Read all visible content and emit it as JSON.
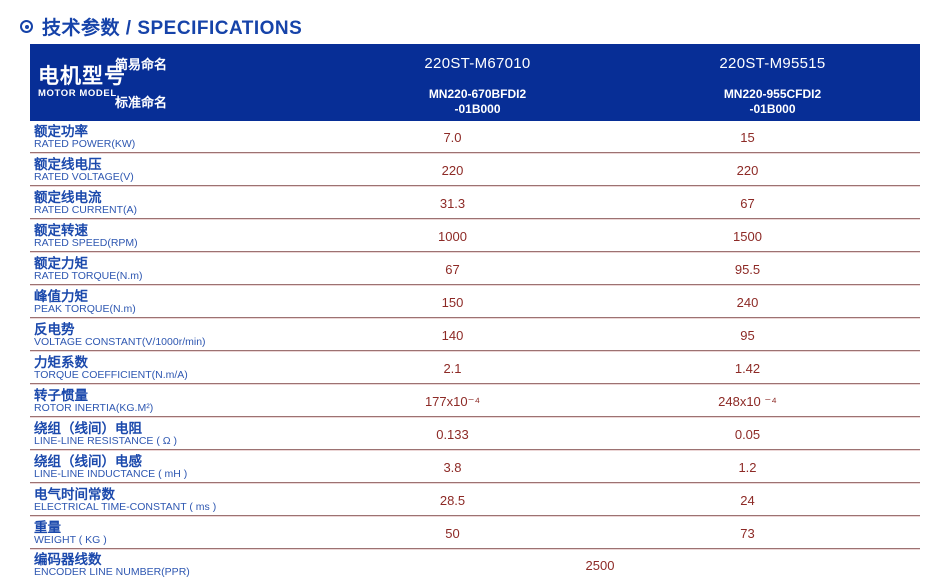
{
  "page": {
    "title": "技术参数 / SPECIFICATIONS"
  },
  "colors": {
    "header_blue": "#072e96",
    "label_blue": "#1b49ac",
    "value_maroon": "#8d2a26",
    "separator_maroon": "#9c7272"
  },
  "table": {
    "header": {
      "model_label_cn": "电机型号",
      "model_label_en": "MOTOR MODEL",
      "simple_name_label": "简易命名",
      "standard_name_label": "标准命名",
      "columns": [
        {
          "simple": "220ST-M67010",
          "standard_line1": "MN220-670BFDI2",
          "standard_line2": "-01B000"
        },
        {
          "simple": "220ST-M95515",
          "standard_line1": "MN220-955CFDI2",
          "standard_line2": "-01B000"
        }
      ]
    },
    "rows": [
      {
        "cn": "额定功率",
        "en": "RATED POWER(KW)",
        "v1": "7.0",
        "v2": "15"
      },
      {
        "cn": "额定线电压",
        "en": "RATED VOLTAGE(V)",
        "v1": "220",
        "v2": "220"
      },
      {
        "cn": "额定线电流",
        "en": "RATED CURRENT(A)",
        "v1": "31.3",
        "v2": "67"
      },
      {
        "cn": "额定转速",
        "en": "RATED SPEED(RPM)",
        "v1": "1000",
        "v2": "1500"
      },
      {
        "cn": "额定力矩",
        "en": "RATED TORQUE(N.m)",
        "v1": "67",
        "v2": "95.5"
      },
      {
        "cn": "峰值力矩",
        "en": "PEAK TORQUE(N.m)",
        "v1": "150",
        "v2": "240"
      },
      {
        "cn": "反电势",
        "en": "VOLTAGE CONSTANT(V/1000r/min)",
        "v1": "140",
        "v2": "95"
      },
      {
        "cn": "力矩系数",
        "en": "TORQUE COEFFICIENT(N.m/A)",
        "v1": "2.1",
        "v2": "1.42"
      },
      {
        "cn": "转子惯量",
        "en": "ROTOR INERTIA(KG.M²)",
        "v1": "177x10⁻⁴",
        "v2": "248x10 ⁻⁴"
      },
      {
        "cn": "绕组（线间）电阻",
        "en": "LINE-LINE RESISTANCE ( Ω )",
        "v1": "0.133",
        "v2": "0.05"
      },
      {
        "cn": "绕组（线间）电感",
        "en": "LINE-LINE INDUCTANCE ( mH )",
        "v1": "3.8",
        "v2": "1.2"
      },
      {
        "cn": "电气时间常数",
        "en": "ELECTRICAL TIME-CONSTANT ( ms )",
        "v1": "28.5",
        "v2": "24"
      },
      {
        "cn": "重量",
        "en": "WEIGHT ( KG )",
        "v1": "50",
        "v2": "73"
      }
    ],
    "footer_row": {
      "cn": "编码器线数",
      "en": "ENCODER LINE NUMBER(PPR)",
      "value": "2500"
    }
  }
}
